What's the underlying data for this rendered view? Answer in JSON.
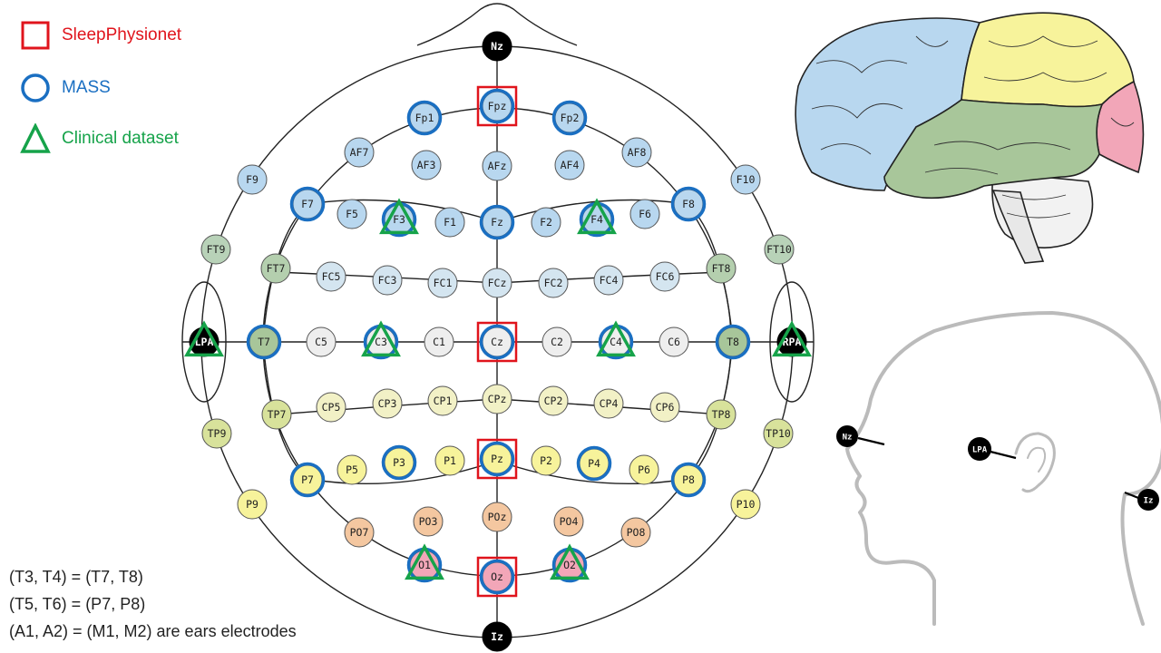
{
  "legend": {
    "sleep_physionet": {
      "label": "SleepPhysionet",
      "color": "#e0141c"
    },
    "mass": {
      "label": "MASS",
      "color": "#1a6fc2"
    },
    "clinical": {
      "label": "Clinical dataset",
      "color": "#16a34a"
    }
  },
  "notes": [
    "(T3, T4) = (T7, T8)",
    "(T5, T6) =  (P7, P8)",
    "(A1, A2) = (M1, M2) are ears electrodes"
  ],
  "region_colors": {
    "frontal": "#b8d7ef",
    "central": "#eeeeee",
    "temporal": "#a8c69a",
    "parietal": "#f7f39b",
    "occipital": "#f2a6b8",
    "parieto_occipital": "#f4c7a0",
    "landmark": "#000000"
  },
  "electrodes": [
    {
      "label": "Nz",
      "region": "landmark"
    },
    {
      "label": "Fpz",
      "region": "frontal",
      "datasets": [
        "sleep_physionet",
        "mass"
      ]
    },
    {
      "label": "Fp1",
      "region": "frontal",
      "datasets": [
        "mass"
      ]
    },
    {
      "label": "Fp2",
      "region": "frontal",
      "datasets": [
        "mass"
      ]
    },
    {
      "label": "AF7",
      "region": "frontal"
    },
    {
      "label": "AF3",
      "region": "frontal"
    },
    {
      "label": "AFz",
      "region": "frontal"
    },
    {
      "label": "AF4",
      "region": "frontal"
    },
    {
      "label": "AF8",
      "region": "frontal"
    },
    {
      "label": "F9",
      "region": "frontal"
    },
    {
      "label": "F7",
      "region": "frontal",
      "datasets": [
        "mass"
      ]
    },
    {
      "label": "F5",
      "region": "frontal"
    },
    {
      "label": "F3",
      "region": "frontal",
      "datasets": [
        "mass",
        "clinical"
      ]
    },
    {
      "label": "F1",
      "region": "frontal"
    },
    {
      "label": "Fz",
      "region": "frontal",
      "datasets": [
        "mass"
      ]
    },
    {
      "label": "F2",
      "region": "frontal"
    },
    {
      "label": "F4",
      "region": "frontal",
      "datasets": [
        "mass",
        "clinical"
      ]
    },
    {
      "label": "F6",
      "region": "frontal"
    },
    {
      "label": "F8",
      "region": "frontal",
      "datasets": [
        "mass"
      ]
    },
    {
      "label": "F10",
      "region": "frontal"
    },
    {
      "label": "FT9",
      "region": "temporal"
    },
    {
      "label": "FT7",
      "region": "temporal"
    },
    {
      "label": "FC5",
      "region": "frontocentral"
    },
    {
      "label": "FC3",
      "region": "frontocentral"
    },
    {
      "label": "FC1",
      "region": "frontocentral"
    },
    {
      "label": "FCz",
      "region": "frontocentral"
    },
    {
      "label": "FC2",
      "region": "frontocentral"
    },
    {
      "label": "FC4",
      "region": "frontocentral"
    },
    {
      "label": "FC6",
      "region": "frontocentral"
    },
    {
      "label": "FT8",
      "region": "temporal"
    },
    {
      "label": "FT10",
      "region": "temporal"
    },
    {
      "label": "LPA",
      "region": "landmark",
      "datasets": [
        "clinical"
      ]
    },
    {
      "label": "T7",
      "region": "temporal",
      "datasets": [
        "mass"
      ]
    },
    {
      "label": "C5",
      "region": "central"
    },
    {
      "label": "C3",
      "region": "central",
      "datasets": [
        "mass",
        "clinical"
      ]
    },
    {
      "label": "C1",
      "region": "central"
    },
    {
      "label": "Cz",
      "region": "central",
      "datasets": [
        "sleep_physionet",
        "mass"
      ]
    },
    {
      "label": "C2",
      "region": "central"
    },
    {
      "label": "C4",
      "region": "central",
      "datasets": [
        "mass",
        "clinical"
      ]
    },
    {
      "label": "C6",
      "region": "central"
    },
    {
      "label": "T8",
      "region": "temporal",
      "datasets": [
        "mass"
      ]
    },
    {
      "label": "RPA",
      "region": "landmark",
      "datasets": [
        "clinical"
      ]
    },
    {
      "label": "TP7",
      "region": "temporoparietal"
    },
    {
      "label": "CP5",
      "region": "centroparietal"
    },
    {
      "label": "CP3",
      "region": "centroparietal"
    },
    {
      "label": "CP1",
      "region": "centroparietal"
    },
    {
      "label": "CPz",
      "region": "centroparietal"
    },
    {
      "label": "CP2",
      "region": "centroparietal"
    },
    {
      "label": "CP4",
      "region": "centroparietal"
    },
    {
      "label": "CP6",
      "region": "centroparietal"
    },
    {
      "label": "TP8",
      "region": "temporoparietal"
    },
    {
      "label": "TP9",
      "region": "temporoparietal"
    },
    {
      "label": "TP10",
      "region": "temporoparietal"
    },
    {
      "label": "P7",
      "region": "parietal",
      "datasets": [
        "mass"
      ]
    },
    {
      "label": "P5",
      "region": "parietal"
    },
    {
      "label": "P3",
      "region": "parietal",
      "datasets": [
        "mass"
      ]
    },
    {
      "label": "P1",
      "region": "parietal"
    },
    {
      "label": "Pz",
      "region": "parietal",
      "datasets": [
        "sleep_physionet",
        "mass"
      ]
    },
    {
      "label": "P2",
      "region": "parietal"
    },
    {
      "label": "P4",
      "region": "parietal",
      "datasets": [
        "mass"
      ]
    },
    {
      "label": "P6",
      "region": "parietal"
    },
    {
      "label": "P8",
      "region": "parietal",
      "datasets": [
        "mass"
      ]
    },
    {
      "label": "P9",
      "region": "parietal"
    },
    {
      "label": "P10",
      "region": "parietal"
    },
    {
      "label": "PO7",
      "region": "parieto_occipital"
    },
    {
      "label": "PO3",
      "region": "parieto_occipital"
    },
    {
      "label": "POz",
      "region": "parieto_occipital"
    },
    {
      "label": "PO4",
      "region": "parieto_occipital"
    },
    {
      "label": "PO8",
      "region": "parieto_occipital"
    },
    {
      "label": "O1",
      "region": "occipital",
      "datasets": [
        "mass",
        "clinical"
      ]
    },
    {
      "label": "Oz",
      "region": "occipital",
      "datasets": [
        "sleep_physionet",
        "mass"
      ]
    },
    {
      "label": "O2",
      "region": "occipital",
      "datasets": [
        "mass",
        "clinical"
      ]
    },
    {
      "label": "Iz",
      "region": "landmark"
    }
  ],
  "side_head": {
    "landmarks": [
      "Nz",
      "LPA",
      "Iz"
    ]
  }
}
